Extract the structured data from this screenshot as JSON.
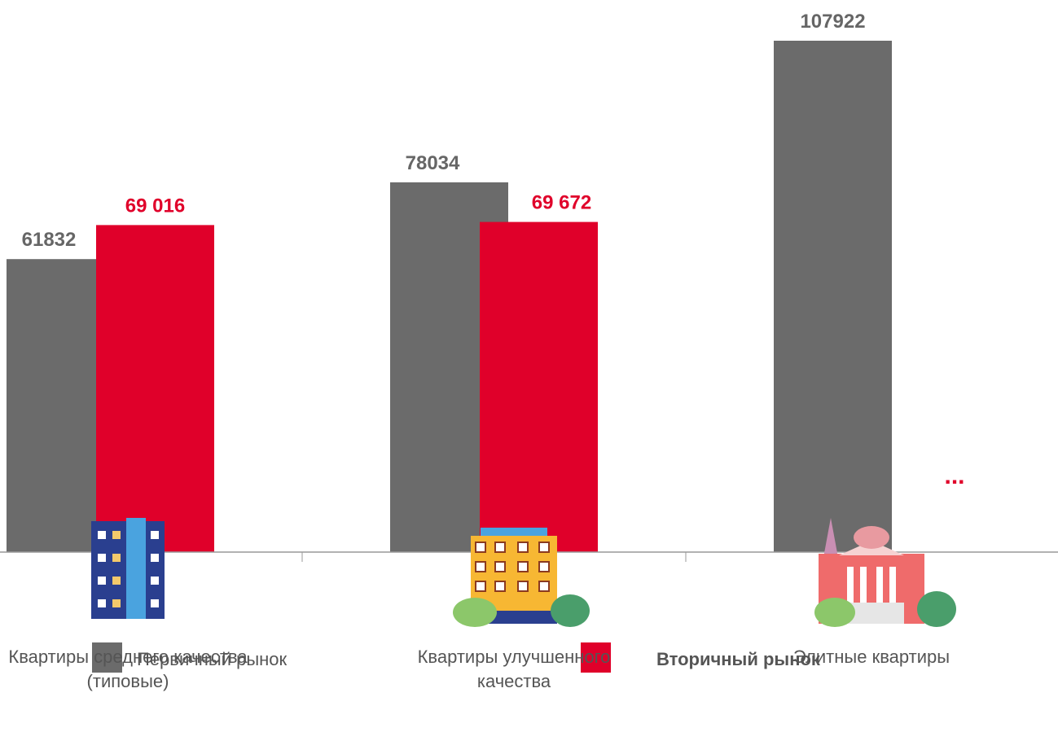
{
  "chart_data": {
    "type": "bar",
    "categories": [
      "Квартиры среднего качества (типовые)",
      "Квартиры улучшенного качества",
      "Элитные квартиры"
    ],
    "series": [
      {
        "name": "Первичный рынок",
        "color": "#6b6b6b",
        "values": [
          61832,
          78034,
          107922
        ]
      },
      {
        "name": "Вторичный рынок",
        "color": "#e0002a",
        "values": [
          69016,
          69672,
          null
        ],
        "value_labels": [
          "69 016",
          "69 672",
          null
        ]
      }
    ],
    "annotation": "..."
  }
}
